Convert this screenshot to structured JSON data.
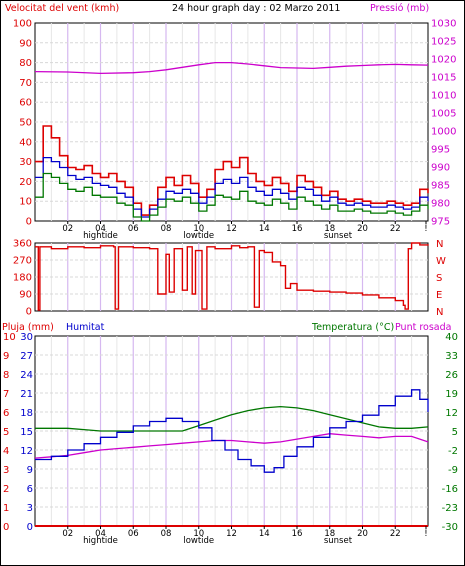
{
  "header": {
    "wind_label": "Velocitat del vent (kmh)",
    "title": "24 hour graph day : 02 Marzo 2011",
    "pressure_label": "Pressió (mb)"
  },
  "lower_header": {
    "rain_label": "Pluja (mm)",
    "humidity_label": "Humitat",
    "temp_label": "Temperatura (°C)",
    "dew_label": "Punt rosada"
  },
  "colors": {
    "wind_gust": "#dd0000",
    "wind_avg": "#0000cc",
    "wind_min": "#007700",
    "pressure": "#cc00cc",
    "direction": "#dd0000",
    "rain": "#dd0000",
    "humidity": "#0000cc",
    "temperature": "#007700",
    "dewpoint": "#cc00cc"
  },
  "chart_data": [
    {
      "type": "line",
      "panel": "wind-pressure",
      "x_ticks": [
        "02",
        "04",
        "06",
        "08",
        "10",
        "12",
        "14",
        "16",
        "18",
        "20",
        "22",
        "!"
      ],
      "x_annotations": [
        {
          "label": "hightide",
          "at": 4
        },
        {
          "label": "lowtide",
          "at": 10
        },
        {
          "label": "sunset",
          "at": 18.5
        }
      ],
      "ylim_left": [
        0,
        100
      ],
      "yticks_left": [
        0,
        10,
        20,
        30,
        40,
        50,
        60,
        70,
        80,
        90,
        100
      ],
      "ylim_right": [
        975,
        1030
      ],
      "yticks_right": [
        975,
        980,
        985,
        990,
        995,
        1000,
        1005,
        1010,
        1015,
        1020,
        1025,
        1030
      ],
      "series": [
        {
          "axis": "left",
          "color_key": "wind_gust",
          "x": [
            0,
            0.5,
            1,
            1.5,
            2,
            2.5,
            3,
            3.5,
            4,
            4.5,
            5,
            5.5,
            6,
            6.5,
            7,
            7.5,
            8,
            8.5,
            9,
            9.5,
            10,
            10.5,
            11,
            11.5,
            12,
            12.5,
            13,
            13.5,
            14,
            14.5,
            15,
            15.5,
            16,
            16.5,
            17,
            17.5,
            18,
            18.5,
            19,
            19.5,
            20,
            20.5,
            21,
            21.5,
            22,
            22.5,
            23,
            23.5,
            24
          ],
          "values": [
            30,
            48,
            42,
            33,
            27,
            26,
            28,
            24,
            22,
            24,
            20,
            17,
            9,
            3,
            8,
            17,
            22,
            18,
            23,
            19,
            12,
            16,
            26,
            30,
            27,
            32,
            24,
            20,
            18,
            22,
            19,
            15,
            23,
            20,
            17,
            13,
            15,
            11,
            10,
            11,
            10,
            9,
            9,
            10,
            9,
            8,
            9,
            16,
            14
          ]
        },
        {
          "axis": "left",
          "color_key": "wind_avg",
          "x": [
            0,
            0.5,
            1,
            1.5,
            2,
            2.5,
            3,
            3.5,
            4,
            4.5,
            5,
            5.5,
            6,
            6.5,
            7,
            7.5,
            8,
            8.5,
            9,
            9.5,
            10,
            10.5,
            11,
            11.5,
            12,
            12.5,
            13,
            13.5,
            14,
            14.5,
            15,
            15.5,
            16,
            16.5,
            17,
            17.5,
            18,
            18.5,
            19,
            19.5,
            20,
            20.5,
            21,
            21.5,
            22,
            22.5,
            23,
            23.5,
            24
          ],
          "values": [
            22,
            32,
            30,
            27,
            23,
            21,
            22,
            19,
            18,
            17,
            14,
            12,
            6,
            2,
            6,
            11,
            15,
            14,
            16,
            14,
            9,
            12,
            19,
            21,
            19,
            22,
            17,
            15,
            13,
            16,
            14,
            11,
            17,
            16,
            13,
            10,
            12,
            9,
            8,
            9,
            8,
            7,
            7,
            8,
            7,
            6,
            7,
            12,
            10
          ]
        },
        {
          "axis": "left",
          "color_key": "wind_min",
          "x": [
            0,
            0.5,
            1,
            1.5,
            2,
            2.5,
            3,
            3.5,
            4,
            4.5,
            5,
            5.5,
            6,
            6.5,
            7,
            7.5,
            8,
            8.5,
            9,
            9.5,
            10,
            10.5,
            11,
            11.5,
            12,
            12.5,
            13,
            13.5,
            14,
            14.5,
            15,
            15.5,
            16,
            16.5,
            17,
            17.5,
            18,
            18.5,
            19,
            19.5,
            20,
            20.5,
            21,
            21.5,
            22,
            22.5,
            23,
            23.5,
            24
          ],
          "values": [
            12,
            24,
            22,
            19,
            16,
            15,
            17,
            13,
            12,
            12,
            9,
            8,
            2,
            0,
            3,
            7,
            11,
            10,
            12,
            9,
            5,
            8,
            13,
            12,
            11,
            15,
            10,
            9,
            8,
            11,
            9,
            6,
            12,
            10,
            8,
            6,
            8,
            5,
            5,
            6,
            5,
            4,
            4,
            5,
            4,
            3,
            5,
            8,
            6
          ]
        },
        {
          "axis": "right",
          "color_key": "pressure",
          "x": [
            0,
            2,
            4,
            6,
            7,
            8,
            9,
            10,
            11,
            12,
            13,
            14,
            15,
            16,
            17,
            18,
            19,
            20,
            21,
            22,
            23,
            24
          ],
          "values": [
            1016.5,
            1016.4,
            1016,
            1016.2,
            1016.5,
            1017,
            1017.7,
            1018.4,
            1019,
            1019,
            1018.6,
            1018.1,
            1017.6,
            1017.5,
            1017.4,
            1017.7,
            1018,
            1018.2,
            1018.4,
            1018.5,
            1018.4,
            1018.3
          ]
        }
      ]
    },
    {
      "type": "line",
      "panel": "wind-direction",
      "ylim": [
        0,
        360
      ],
      "yticks": [
        0,
        90,
        180,
        270,
        360
      ],
      "right_labels": [
        "N",
        "W",
        "S",
        "E",
        "N"
      ],
      "series": [
        {
          "color_key": "direction",
          "x": [
            0,
            0.2,
            0.3,
            1,
            2,
            3,
            4,
            4.8,
            4.9,
            5.1,
            6,
            7,
            7.5,
            8,
            8.2,
            8.5,
            9,
            9.3,
            9.6,
            9.8,
            10.2,
            10.5,
            11,
            12,
            12.5,
            13,
            13.4,
            13.7,
            14,
            14.5,
            15,
            15.3,
            15.6,
            16,
            17,
            18,
            19,
            20,
            21,
            22,
            22.5,
            22.6,
            22.8,
            23,
            23.5,
            24
          ],
          "values": [
            340,
            5,
            340,
            330,
            340,
            335,
            345,
            340,
            10,
            340,
            335,
            330,
            90,
            300,
            100,
            330,
            110,
            340,
            90,
            320,
            10,
            340,
            330,
            345,
            335,
            340,
            20,
            320,
            310,
            260,
            240,
            120,
            145,
            110,
            105,
            100,
            95,
            85,
            70,
            55,
            30,
            10,
            330,
            360,
            350,
            345
          ]
        }
      ]
    },
    {
      "type": "line",
      "panel": "rain-humidity-temperature",
      "ylim_rain": [
        0,
        10
      ],
      "yticks_rain": [
        0,
        1,
        2,
        3,
        4,
        5,
        6,
        7,
        8,
        9,
        10
      ],
      "ylim_humidity": [
        0,
        30
      ],
      "yticks_humidity": [
        0,
        3,
        6,
        9,
        12,
        15,
        18,
        21,
        24,
        27,
        30
      ],
      "ylim_temperature": [
        -30,
        40
      ],
      "yticks_temperature": [
        -30,
        -23,
        -16,
        -9,
        -2,
        5,
        12,
        19,
        26,
        33,
        40
      ],
      "series": [
        {
          "axis": "temperature",
          "color_key": "temperature",
          "x": [
            0,
            1,
            2,
            3,
            4,
            5,
            6,
            7,
            8,
            9,
            10,
            11,
            12,
            13,
            14,
            15,
            16,
            17,
            18,
            19,
            20,
            21,
            22,
            23,
            24
          ],
          "values": [
            6,
            6,
            6,
            5.5,
            5,
            5,
            5,
            5,
            5,
            5,
            7,
            9,
            11,
            12.5,
            13.5,
            14,
            13.5,
            12.5,
            11,
            9.5,
            8,
            6.5,
            6,
            6,
            6.5
          ]
        },
        {
          "axis": "temperature",
          "color_key": "dewpoint",
          "x": [
            0,
            1,
            2,
            3,
            4,
            5,
            6,
            7,
            8,
            9,
            10,
            11,
            12,
            13,
            14,
            15,
            16,
            17,
            18,
            19,
            20,
            21,
            22,
            23,
            24
          ],
          "values": [
            -5,
            -4.5,
            -4,
            -3,
            -2,
            -1.5,
            -1,
            -0.5,
            0,
            0.5,
            1,
            1.5,
            1.5,
            1,
            0.5,
            1,
            2,
            3,
            4,
            3.5,
            3,
            2.5,
            3,
            3,
            1
          ]
        },
        {
          "axis": "humidity",
          "color_key": "humidity",
          "x": [
            0,
            1,
            2,
            3,
            4,
            5,
            6,
            7,
            8,
            9,
            10,
            10.8,
            11.6,
            12.4,
            13.2,
            14,
            14.6,
            15.2,
            16,
            17,
            18,
            19,
            20,
            21,
            22,
            23,
            23.5,
            24
          ],
          "values": [
            10.5,
            11,
            12,
            13,
            14,
            14.8,
            15.8,
            16.5,
            17,
            16.5,
            15.5,
            13.5,
            12,
            10.5,
            9.5,
            8.5,
            9.2,
            11,
            12.5,
            14,
            15.5,
            16.5,
            17.5,
            19,
            20.5,
            21.5,
            20,
            18
          ]
        },
        {
          "axis": "rain",
          "color_key": "rain",
          "x": [
            0,
            24
          ],
          "values": [
            0,
            0
          ]
        }
      ]
    }
  ]
}
